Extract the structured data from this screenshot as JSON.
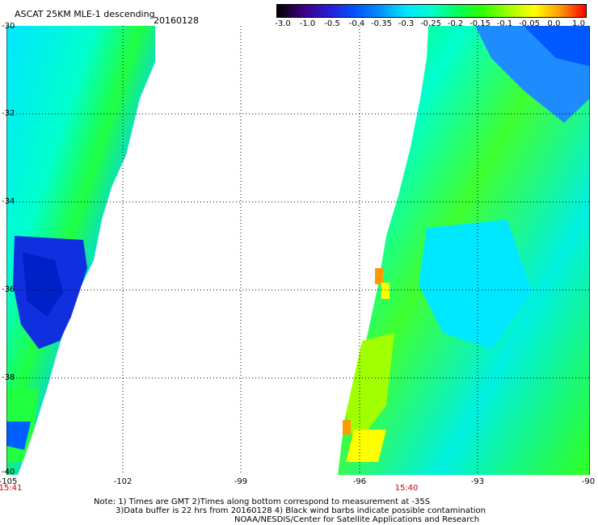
{
  "header": {
    "title": "ASCAT 25KM MLE-1 descending",
    "date": "20160128"
  },
  "colorbar": {
    "ticks": [
      "-3.0",
      "-1.0",
      "-0.5",
      "-0.4",
      "-0.35",
      "-0.3",
      "-0.25",
      "-0.2",
      "-0.15",
      "-0.1",
      "-0.05",
      "0.0",
      "1.0"
    ],
    "colors": [
      "#000000",
      "#3d0080",
      "#2a1bd6",
      "#0050ff",
      "#0090ff",
      "#00e6ff",
      "#00ffcc",
      "#00ff5a",
      "#30ff00",
      "#a0ff00",
      "#ffff00",
      "#ff9a00",
      "#ff0000"
    ]
  },
  "map": {
    "lat_labels": [
      "-30",
      "-32",
      "-34",
      "-36",
      "-38",
      "-40"
    ],
    "lon_labels": [
      "-105",
      "-102",
      "-99",
      "-96",
      "-93",
      "-90"
    ],
    "time_labels": [
      "15:41",
      "15:40"
    ]
  },
  "notes": {
    "line1": "Note: 1) Times are GMT 2)Times along bottom correspond to measurement at -35S",
    "line2": "3)Data buffer is 22 hrs from 20160128 4) Black wind barbs indicate possible contamination",
    "line3": "NOAA/NESDIS/Center for Satellite Applications and Research"
  }
}
